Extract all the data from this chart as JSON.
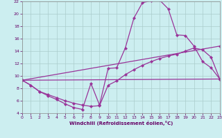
{
  "xlabel": "Windchill (Refroidissement éolien,°C)",
  "xlim": [
    0,
    23
  ],
  "ylim": [
    4,
    22
  ],
  "yticks": [
    4,
    6,
    8,
    10,
    12,
    14,
    16,
    18,
    20,
    22
  ],
  "xticks": [
    0,
    1,
    2,
    3,
    4,
    5,
    6,
    7,
    8,
    9,
    10,
    11,
    12,
    13,
    14,
    15,
    16,
    17,
    18,
    19,
    20,
    21,
    22,
    23
  ],
  "background_color": "#cceef0",
  "grid_color": "#aacccc",
  "line_color": "#993399",
  "line_width": 0.9,
  "marker": "D",
  "marker_size": 2.2,
  "line1_x": [
    0,
    1,
    2,
    3,
    4,
    5,
    6,
    7,
    8,
    9,
    10,
    11,
    12,
    13,
    14,
    15,
    16,
    17,
    18,
    19,
    20,
    21,
    22,
    23
  ],
  "line1_y": [
    9.3,
    8.5,
    7.5,
    6.8,
    6.2,
    5.5,
    4.9,
    4.6,
    8.8,
    5.3,
    11.2,
    11.3,
    14.5,
    19.3,
    21.8,
    22.1,
    22.2,
    20.8,
    16.6,
    16.5,
    14.8,
    12.3,
    11.3,
    9.5
  ],
  "line2_x": [
    0,
    1,
    2,
    3,
    4,
    5,
    6,
    7,
    8,
    9,
    10,
    11,
    12,
    13,
    14,
    15,
    16,
    17,
    18,
    19,
    20,
    21,
    22,
    23
  ],
  "line2_y": [
    9.3,
    8.5,
    7.5,
    7.0,
    6.5,
    6.0,
    5.6,
    5.3,
    5.1,
    5.2,
    8.5,
    9.2,
    10.2,
    11.0,
    11.7,
    12.3,
    12.8,
    13.2,
    13.5,
    14.0,
    14.5,
    14.2,
    13.0,
    9.5
  ],
  "line3_x": [
    0,
    23
  ],
  "line3_y": [
    9.3,
    14.8
  ],
  "line4_x": [
    0,
    23
  ],
  "line4_y": [
    9.3,
    9.5
  ]
}
